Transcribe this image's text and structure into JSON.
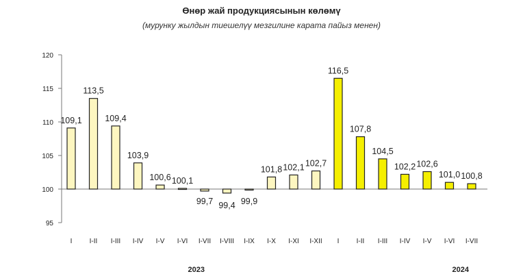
{
  "chart_data": {
    "type": "bar",
    "title": "Өнөр жай продукциясынын көлөмү",
    "subtitle": "(мурунку жылдын тиешелүү мезгилине карата пайыз менен)",
    "ylim": [
      95,
      120
    ],
    "yticks": [
      95,
      100,
      105,
      110,
      115,
      120
    ],
    "baseline": 100,
    "grid": false,
    "legend": "none",
    "groups": [
      {
        "year": "2023",
        "color": "#fdf6c0",
        "categories": [
          "I",
          "I-II",
          "I-III",
          "I-IV",
          "I-V",
          "I-VI",
          "I-VII",
          "I-VIII",
          "I-IX",
          "I-X",
          "I-XI",
          "I-XII"
        ],
        "values": [
          109.1,
          113.5,
          109.4,
          103.9,
          100.6,
          100.1,
          99.7,
          99.4,
          99.9,
          101.8,
          102.1,
          102.7
        ],
        "labels": [
          "109,1",
          "113,5",
          "109,4",
          "103,9",
          "100,6",
          "100,1",
          "99,7",
          "99,4",
          "99,9",
          "101,8",
          "102,1",
          "102,7"
        ]
      },
      {
        "year": "2024",
        "color": "#f5ef00",
        "categories": [
          "I",
          "I-II",
          "I-III",
          "I-IV",
          "I-V",
          "I-VI",
          "I-VII"
        ],
        "values": [
          116.5,
          107.8,
          104.5,
          102.2,
          102.6,
          101.0,
          100.8
        ],
        "labels": [
          "116,5",
          "107,8",
          "104,5",
          "102,2",
          "102,6",
          "101,0",
          "100,8"
        ]
      }
    ]
  }
}
